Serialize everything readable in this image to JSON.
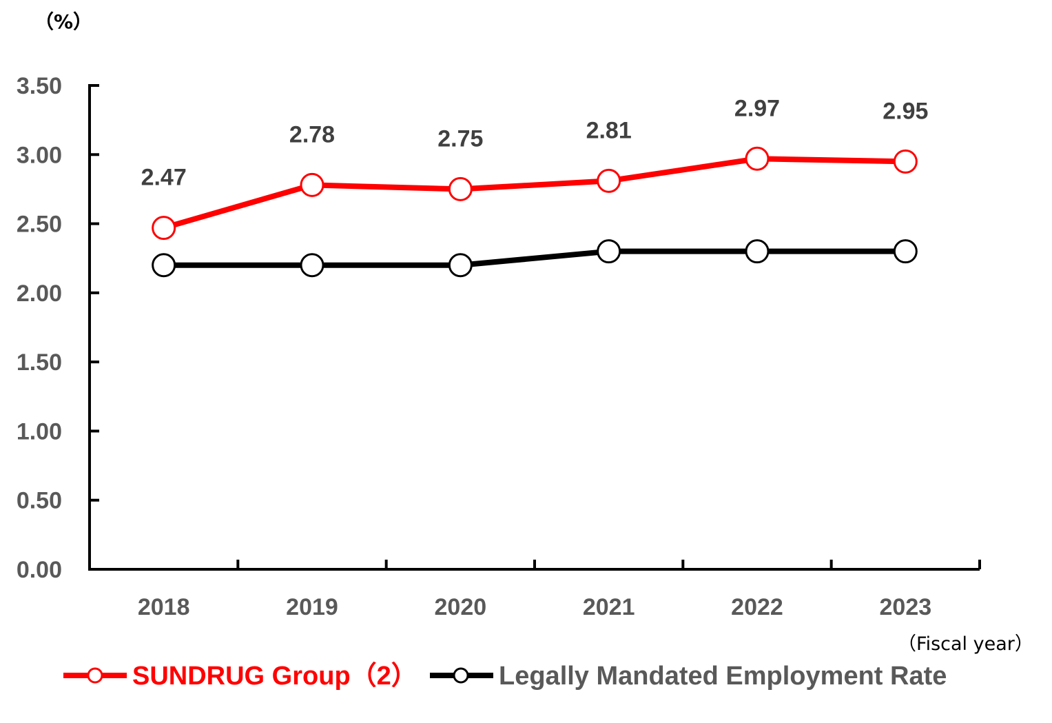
{
  "chart_data": {
    "type": "line",
    "ylabel": "（%）",
    "xlabel": "（Fiscal year）",
    "categories": [
      "2018",
      "2019",
      "2020",
      "2021",
      "2022",
      "2023"
    ],
    "ylim": [
      0,
      3.5
    ],
    "yticks": [
      "0.00",
      "0.50",
      "1.00",
      "1.50",
      "2.00",
      "2.50",
      "3.00",
      "3.50"
    ],
    "grid": false,
    "legend_position": "bottom",
    "series": [
      {
        "name": "SUNDRUG Group（2）",
        "color": "#ff0000",
        "values": [
          2.47,
          2.78,
          2.75,
          2.81,
          2.97,
          2.95
        ],
        "labels": [
          "2.47",
          "2.78",
          "2.75",
          "2.81",
          "2.97",
          "2.95"
        ]
      },
      {
        "name": "Legally Mandated Employment Rate",
        "color": "#000000",
        "values": [
          2.2,
          2.2,
          2.2,
          2.3,
          2.3,
          2.3
        ]
      }
    ]
  }
}
